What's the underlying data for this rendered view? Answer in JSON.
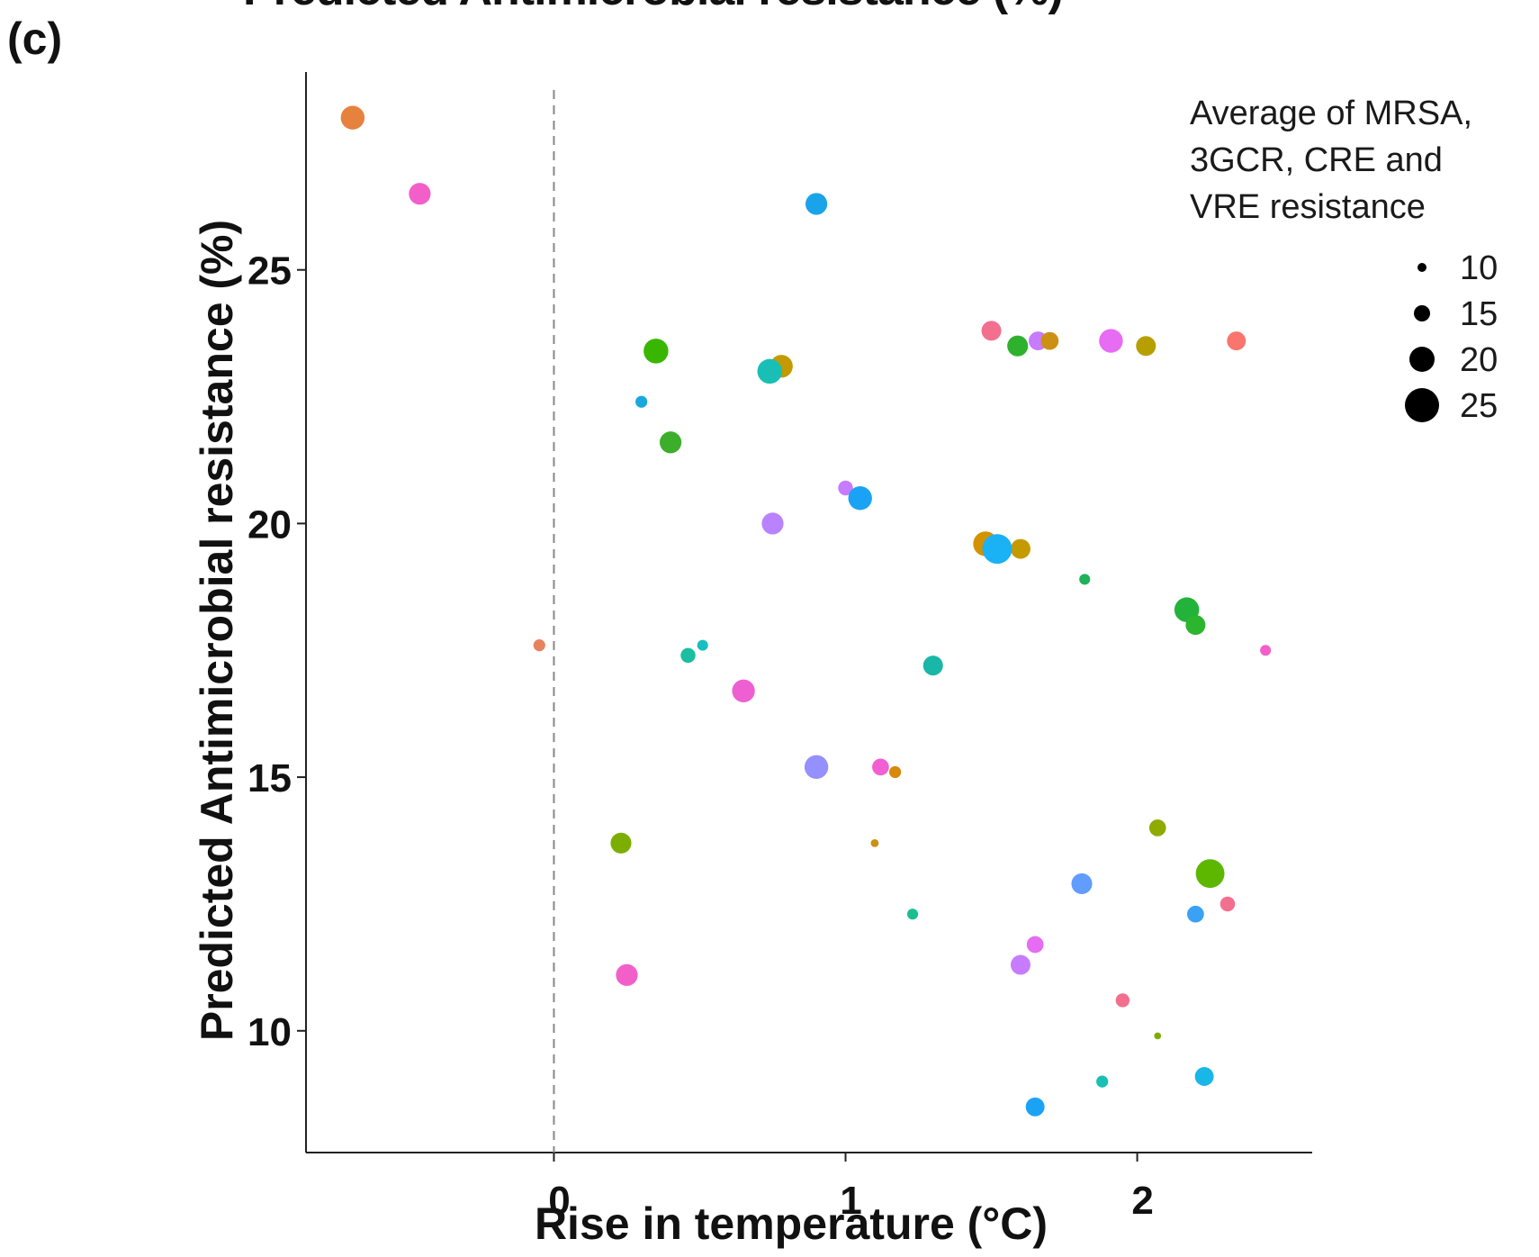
{
  "panel_label": "(c)",
  "chart_data": {
    "type": "scatter",
    "title": "Predicted Antimicrobial resistance (%)",
    "xlabel": "Rise in temperature (°C)",
    "ylabel": "Predicted Antimicrobial resistance (%)",
    "xlim": [
      -0.85,
      2.6
    ],
    "ylim": [
      7.6,
      28.9
    ],
    "x_ticks": [
      0,
      1,
      2
    ],
    "y_ticks": [
      10,
      15,
      20,
      25
    ],
    "reference_line": {
      "x": 0,
      "style": "dashed",
      "color": "#888888"
    },
    "grid": false,
    "legend": {
      "title": "Average of MRSA,\n3GCR, CRE and\nVRE resistance",
      "placement": "top-right",
      "size_entries": [
        10,
        15,
        20,
        25
      ]
    },
    "points": [
      {
        "x": -0.69,
        "y": 28.0,
        "size": 24,
        "color": "#E6813E"
      },
      {
        "x": -0.46,
        "y": 26.5,
        "size": 22,
        "color": "#F35FC9"
      },
      {
        "x": 0.9,
        "y": 26.3,
        "size": 22,
        "color": "#1AA3E8"
      },
      {
        "x": 1.5,
        "y": 23.8,
        "size": 20,
        "color": "#F2708E"
      },
      {
        "x": 1.59,
        "y": 23.5,
        "size": 21,
        "color": "#2EB22E"
      },
      {
        "x": 1.66,
        "y": 23.6,
        "size": 19,
        "color": "#C77CFF"
      },
      {
        "x": 1.7,
        "y": 23.6,
        "size": 18,
        "color": "#CC9014"
      },
      {
        "x": 1.91,
        "y": 23.6,
        "size": 24,
        "color": "#E76BF3"
      },
      {
        "x": 2.03,
        "y": 23.5,
        "size": 20,
        "color": "#B79F00"
      },
      {
        "x": 2.34,
        "y": 23.6,
        "size": 19,
        "color": "#F8766D"
      },
      {
        "x": 0.35,
        "y": 23.4,
        "size": 25,
        "color": "#39B600"
      },
      {
        "x": 0.78,
        "y": 23.1,
        "size": 23,
        "color": "#C49A00"
      },
      {
        "x": 0.74,
        "y": 23.0,
        "size": 25,
        "color": "#19BFB4"
      },
      {
        "x": 0.3,
        "y": 22.4,
        "size": 12,
        "color": "#19A7DD"
      },
      {
        "x": 0.4,
        "y": 21.6,
        "size": 22,
        "color": "#3DAE2B"
      },
      {
        "x": 1.0,
        "y": 20.7,
        "size": 15,
        "color": "#C77CFF"
      },
      {
        "x": 1.05,
        "y": 20.5,
        "size": 24,
        "color": "#1AA3F5"
      },
      {
        "x": 0.75,
        "y": 20.0,
        "size": 22,
        "color": "#B983FF"
      },
      {
        "x": 1.48,
        "y": 19.6,
        "size": 25,
        "color": "#D39200"
      },
      {
        "x": 1.6,
        "y": 19.5,
        "size": 20,
        "color": "#C49A00"
      },
      {
        "x": 1.52,
        "y": 19.5,
        "size": 30,
        "color": "#1AB2F5"
      },
      {
        "x": 1.82,
        "y": 18.9,
        "size": 11,
        "color": "#1FB25A"
      },
      {
        "x": 2.17,
        "y": 18.3,
        "size": 25,
        "color": "#23B33A"
      },
      {
        "x": 2.2,
        "y": 18.0,
        "size": 20,
        "color": "#2CB52E"
      },
      {
        "x": -0.05,
        "y": 17.6,
        "size": 12,
        "color": "#E8825E"
      },
      {
        "x": 0.46,
        "y": 17.4,
        "size": 15,
        "color": "#19BFA0"
      },
      {
        "x": 0.51,
        "y": 17.6,
        "size": 11,
        "color": "#18BFC0"
      },
      {
        "x": 2.44,
        "y": 17.5,
        "size": 11,
        "color": "#F35FC9"
      },
      {
        "x": 1.3,
        "y": 17.2,
        "size": 20,
        "color": "#1AB7A8"
      },
      {
        "x": 0.65,
        "y": 16.7,
        "size": 23,
        "color": "#EE5FD2"
      },
      {
        "x": 0.9,
        "y": 15.2,
        "size": 24,
        "color": "#9590FF"
      },
      {
        "x": 1.12,
        "y": 15.2,
        "size": 17,
        "color": "#F15FD3"
      },
      {
        "x": 1.17,
        "y": 15.1,
        "size": 12,
        "color": "#D8890A"
      },
      {
        "x": 0.23,
        "y": 13.7,
        "size": 21,
        "color": "#7CAE00"
      },
      {
        "x": 1.1,
        "y": 13.7,
        "size": 8,
        "color": "#CC9014"
      },
      {
        "x": 2.07,
        "y": 14.0,
        "size": 17,
        "color": "#8FAA00"
      },
      {
        "x": 2.25,
        "y": 13.1,
        "size": 29,
        "color": "#5DB700"
      },
      {
        "x": 1.81,
        "y": 12.9,
        "size": 21,
        "color": "#619CFF"
      },
      {
        "x": 1.23,
        "y": 12.3,
        "size": 11,
        "color": "#19BF90"
      },
      {
        "x": 2.2,
        "y": 12.3,
        "size": 17,
        "color": "#3AA1F5"
      },
      {
        "x": 2.31,
        "y": 12.5,
        "size": 15,
        "color": "#F2708E"
      },
      {
        "x": 1.65,
        "y": 11.7,
        "size": 17,
        "color": "#E76BF3"
      },
      {
        "x": 1.6,
        "y": 11.3,
        "size": 20,
        "color": "#C77CFF"
      },
      {
        "x": 0.25,
        "y": 11.1,
        "size": 22,
        "color": "#F35FC9"
      },
      {
        "x": 1.95,
        "y": 10.6,
        "size": 14,
        "color": "#F2708E"
      },
      {
        "x": 2.07,
        "y": 9.9,
        "size": 7,
        "color": "#7CAE00"
      },
      {
        "x": 1.88,
        "y": 9.0,
        "size": 12,
        "color": "#19BFB4"
      },
      {
        "x": 2.23,
        "y": 9.1,
        "size": 19,
        "color": "#19B6E8"
      },
      {
        "x": 1.65,
        "y": 8.5,
        "size": 19,
        "color": "#1AA3F5"
      }
    ]
  }
}
